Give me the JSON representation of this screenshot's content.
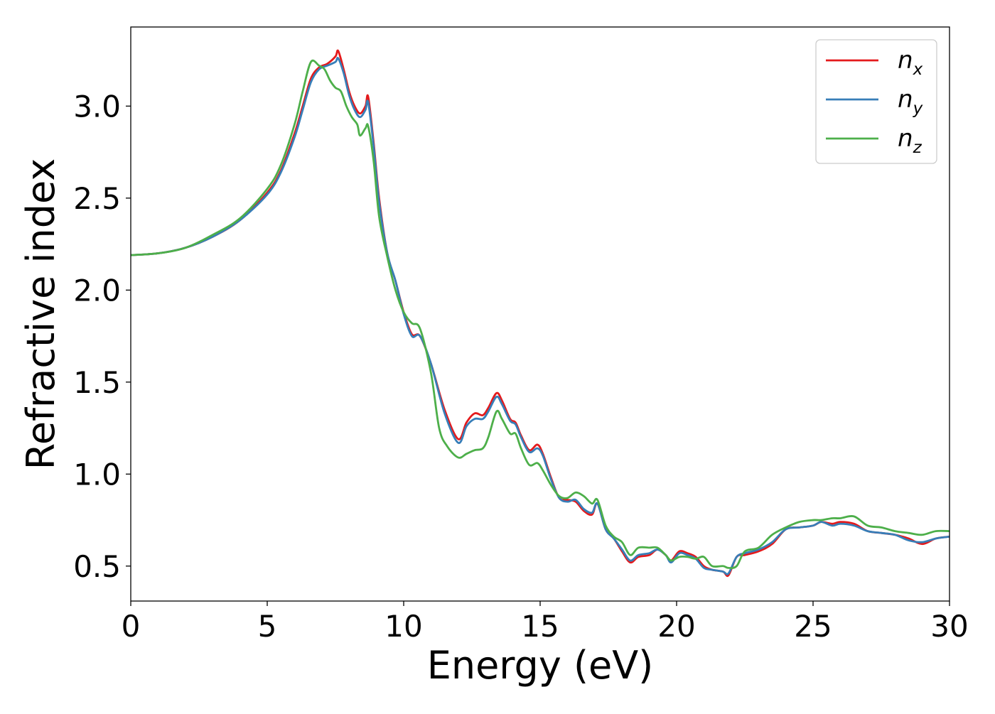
{
  "chart_data": {
    "type": "line",
    "title": "",
    "xlabel": "Energy (eV)",
    "ylabel": "Refractive index",
    "xlim": [
      0,
      30
    ],
    "ylim": [
      0.31,
      3.43
    ],
    "xticks": [
      0,
      5,
      10,
      15,
      20,
      25,
      30
    ],
    "xtick_labels": [
      "0",
      "5",
      "10",
      "15",
      "20",
      "25",
      "30"
    ],
    "yticks": [
      0.5,
      1.0,
      1.5,
      2.0,
      2.5,
      3.0
    ],
    "ytick_labels": [
      "0.5",
      "1.0",
      "1.5",
      "2.0",
      "2.5",
      "3.0"
    ],
    "grid": false,
    "legend_position": "top-right",
    "series": [
      {
        "name": "n_x",
        "legend_base": "n",
        "legend_sub": "x",
        "color": "#e41a1c",
        "x": [
          0,
          1,
          2,
          3,
          4,
          5,
          5.5,
          6,
          6.3,
          6.6,
          6.9,
          7.2,
          7.5,
          7.6,
          7.8,
          8.0,
          8.2,
          8.4,
          8.6,
          8.7,
          8.9,
          9.1,
          9.4,
          9.7,
          10.0,
          10.3,
          10.6,
          11.0,
          11.5,
          12.0,
          12.3,
          12.6,
          12.9,
          13.1,
          13.4,
          13.6,
          13.9,
          14.1,
          14.3,
          14.6,
          14.9,
          15.1,
          15.4,
          15.7,
          16.0,
          16.3,
          16.6,
          16.9,
          17.1,
          17.4,
          17.7,
          18.0,
          18.3,
          18.6,
          19.0,
          19.3,
          19.6,
          19.8,
          20.1,
          20.4,
          20.7,
          21.0,
          21.3,
          21.7,
          21.9,
          22.2,
          22.5,
          23.0,
          23.5,
          24.0,
          24.5,
          25.0,
          25.3,
          25.7,
          26.0,
          26.5,
          27.0,
          27.5,
          28.0,
          28.5,
          29.0,
          29.5,
          30.0
        ],
        "y": [
          2.19,
          2.2,
          2.23,
          2.29,
          2.38,
          2.53,
          2.65,
          2.85,
          3.0,
          3.15,
          3.21,
          3.23,
          3.27,
          3.3,
          3.2,
          3.08,
          3.0,
          2.96,
          3.0,
          3.05,
          2.8,
          2.5,
          2.2,
          2.05,
          1.88,
          1.76,
          1.75,
          1.6,
          1.35,
          1.19,
          1.28,
          1.33,
          1.32,
          1.36,
          1.44,
          1.4,
          1.3,
          1.28,
          1.21,
          1.13,
          1.16,
          1.11,
          0.98,
          0.87,
          0.86,
          0.85,
          0.8,
          0.78,
          0.84,
          0.7,
          0.65,
          0.58,
          0.52,
          0.55,
          0.56,
          0.59,
          0.56,
          0.53,
          0.58,
          0.57,
          0.55,
          0.5,
          0.48,
          0.47,
          0.45,
          0.55,
          0.56,
          0.58,
          0.62,
          0.7,
          0.71,
          0.72,
          0.74,
          0.73,
          0.74,
          0.73,
          0.69,
          0.68,
          0.67,
          0.65,
          0.62,
          0.65,
          0.66
        ]
      },
      {
        "name": "n_y",
        "legend_base": "n",
        "legend_sub": "y",
        "color": "#377eb8",
        "x": [
          0,
          1,
          2,
          3,
          4,
          5,
          5.5,
          6,
          6.3,
          6.6,
          6.9,
          7.2,
          7.5,
          7.6,
          7.8,
          8.0,
          8.2,
          8.4,
          8.6,
          8.7,
          8.9,
          9.1,
          9.4,
          9.7,
          10.0,
          10.3,
          10.6,
          11.0,
          11.5,
          12.0,
          12.3,
          12.6,
          12.9,
          13.1,
          13.4,
          13.6,
          13.9,
          14.1,
          14.3,
          14.6,
          14.9,
          15.1,
          15.4,
          15.7,
          16.0,
          16.3,
          16.6,
          16.9,
          17.1,
          17.4,
          17.7,
          18.0,
          18.3,
          18.6,
          19.0,
          19.3,
          19.6,
          19.8,
          20.1,
          20.4,
          20.7,
          21.0,
          21.3,
          21.7,
          21.9,
          22.2,
          22.5,
          23.0,
          23.5,
          24.0,
          24.5,
          25.0,
          25.3,
          25.7,
          26.0,
          26.5,
          27.0,
          27.5,
          28.0,
          28.5,
          29.0,
          29.5,
          30.0
        ],
        "y": [
          2.19,
          2.2,
          2.23,
          2.29,
          2.38,
          2.52,
          2.64,
          2.83,
          2.98,
          3.13,
          3.2,
          3.22,
          3.24,
          3.26,
          3.18,
          3.06,
          2.98,
          2.94,
          2.98,
          3.02,
          2.78,
          2.48,
          2.2,
          2.05,
          1.87,
          1.75,
          1.75,
          1.6,
          1.33,
          1.17,
          1.26,
          1.3,
          1.3,
          1.34,
          1.42,
          1.38,
          1.29,
          1.27,
          1.2,
          1.12,
          1.14,
          1.1,
          0.97,
          0.87,
          0.85,
          0.86,
          0.81,
          0.79,
          0.84,
          0.7,
          0.65,
          0.59,
          0.53,
          0.56,
          0.57,
          0.59,
          0.56,
          0.52,
          0.57,
          0.56,
          0.54,
          0.49,
          0.48,
          0.47,
          0.46,
          0.55,
          0.57,
          0.59,
          0.63,
          0.7,
          0.71,
          0.72,
          0.74,
          0.72,
          0.73,
          0.72,
          0.69,
          0.68,
          0.67,
          0.64,
          0.63,
          0.65,
          0.66
        ]
      },
      {
        "name": "n_z",
        "legend_base": "n",
        "legend_sub": "z",
        "color": "#4daf4a",
        "x": [
          0,
          1,
          2,
          3,
          4,
          5,
          5.5,
          6,
          6.3,
          6.6,
          6.9,
          7.1,
          7.3,
          7.5,
          7.7,
          7.9,
          8.1,
          8.3,
          8.4,
          8.6,
          8.7,
          8.9,
          9.1,
          9.4,
          9.7,
          10.0,
          10.3,
          10.6,
          11.0,
          11.3,
          11.6,
          12.0,
          12.3,
          12.6,
          12.9,
          13.1,
          13.4,
          13.6,
          13.9,
          14.1,
          14.3,
          14.6,
          14.9,
          15.1,
          15.4,
          15.7,
          16.0,
          16.3,
          16.6,
          16.9,
          17.1,
          17.4,
          17.7,
          18.0,
          18.3,
          18.6,
          19.0,
          19.3,
          19.6,
          19.8,
          20.1,
          20.4,
          20.7,
          21.0,
          21.3,
          21.7,
          21.9,
          22.2,
          22.5,
          23.0,
          23.5,
          24.0,
          24.5,
          25.0,
          25.3,
          25.7,
          26.0,
          26.5,
          27.0,
          27.5,
          28.0,
          28.5,
          29.0,
          29.5,
          30.0
        ],
        "y": [
          2.19,
          2.2,
          2.23,
          2.3,
          2.39,
          2.55,
          2.68,
          2.9,
          3.08,
          3.24,
          3.22,
          3.2,
          3.14,
          3.1,
          3.08,
          3.0,
          2.94,
          2.9,
          2.84,
          2.88,
          2.89,
          2.7,
          2.4,
          2.18,
          2.0,
          1.88,
          1.82,
          1.79,
          1.55,
          1.25,
          1.15,
          1.09,
          1.11,
          1.13,
          1.14,
          1.2,
          1.34,
          1.3,
          1.22,
          1.22,
          1.14,
          1.05,
          1.06,
          1.02,
          0.94,
          0.88,
          0.87,
          0.9,
          0.88,
          0.84,
          0.86,
          0.72,
          0.66,
          0.63,
          0.56,
          0.6,
          0.6,
          0.6,
          0.56,
          0.53,
          0.55,
          0.55,
          0.54,
          0.55,
          0.5,
          0.5,
          0.49,
          0.5,
          0.58,
          0.6,
          0.67,
          0.71,
          0.74,
          0.75,
          0.75,
          0.76,
          0.76,
          0.77,
          0.72,
          0.71,
          0.69,
          0.68,
          0.67,
          0.69,
          0.69
        ]
      }
    ]
  }
}
